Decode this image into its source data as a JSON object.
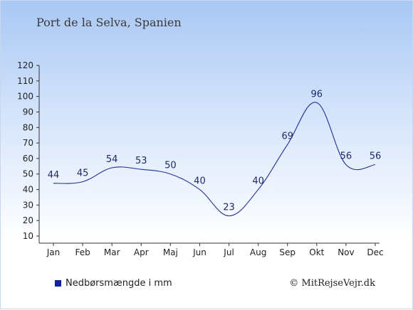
{
  "title": "Port de la Selva, Spanien",
  "legend_label": "Nedbørsmængde i mm",
  "copyright": "© MitRejseVejr.dk",
  "colors": {
    "line": "#1f2f96",
    "legend_swatch": "#0b1fa8"
  },
  "chart_data": {
    "type": "line",
    "title": "Port de la Selva, Spanien",
    "categories": [
      "Jan",
      "Feb",
      "Mar",
      "Apr",
      "Maj",
      "Jun",
      "Jul",
      "Aug",
      "Sep",
      "Okt",
      "Nov",
      "Dec"
    ],
    "series": [
      {
        "name": "Nedbørsmængde i mm",
        "values": [
          44,
          45,
          54,
          53,
          50,
          40,
          23,
          40,
          69,
          96,
          56,
          56
        ]
      }
    ],
    "ylim": [
      10,
      120
    ],
    "yticks": [
      10,
      20,
      30,
      40,
      50,
      60,
      70,
      80,
      90,
      100,
      110,
      120
    ],
    "grid": false,
    "legend_position": "bottom-left"
  }
}
